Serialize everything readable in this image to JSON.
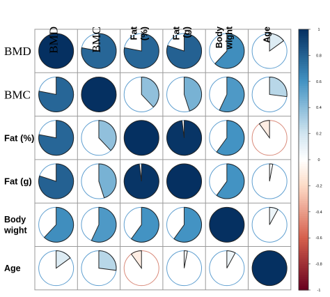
{
  "chart_data": {
    "type": "heatmap",
    "title": "",
    "style": "correlogram-pie",
    "variables": [
      "BMD",
      "BMC",
      "Fat (%)",
      "Fat (g)",
      "Body wight",
      "Age"
    ],
    "row_labels": [
      {
        "text": "BMD",
        "lines": [
          "BMD"
        ],
        "font": "serif"
      },
      {
        "text": "BMC",
        "lines": [
          "BMC"
        ],
        "font": "serif"
      },
      {
        "text": "Fat (%)",
        "lines": [
          "Fat (%)"
        ],
        "font": "sans"
      },
      {
        "text": "Fat (g)",
        "lines": [
          "Fat (g)"
        ],
        "font": "sans"
      },
      {
        "text": "Body wight",
        "lines": [
          "Body",
          "wight"
        ],
        "font": "sans-bold"
      },
      {
        "text": "Age",
        "lines": [
          "Age"
        ],
        "font": "sans-bold"
      }
    ],
    "column_labels": [
      {
        "text": "BMD",
        "lines": [
          "BMD"
        ],
        "font": "serif"
      },
      {
        "text": "BMC",
        "lines": [
          "BMC"
        ],
        "font": "serif"
      },
      {
        "text": "Fat (%)",
        "lines": [
          "Fat",
          "(%)"
        ],
        "font": "sans"
      },
      {
        "text": "Fat (g)",
        "lines": [
          "Fat",
          "(g)"
        ],
        "font": "sans"
      },
      {
        "text": "Body wight",
        "lines": [
          "Body",
          "wight"
        ],
        "font": "sans-bold"
      },
      {
        "text": "Age",
        "lines": [
          "Age"
        ],
        "font": "sans-bold"
      }
    ],
    "matrix": [
      [
        1.0,
        0.78,
        0.78,
        0.8,
        0.62,
        0.15
      ],
      [
        0.78,
        1.0,
        0.38,
        0.45,
        0.57,
        0.27
      ],
      [
        0.78,
        0.38,
        1.0,
        0.98,
        0.6,
        -0.1
      ],
      [
        0.8,
        0.45,
        0.98,
        1.0,
        0.6,
        0.03
      ],
      [
        0.62,
        0.57,
        0.6,
        0.6,
        1.0,
        0.08
      ],
      [
        0.15,
        0.27,
        -0.1,
        0.03,
        0.08,
        1.0
      ]
    ],
    "colorbar": {
      "range": [
        -1,
        1
      ],
      "ticks": [
        "1",
        "0.8",
        "0.6",
        "0.4",
        "0.2",
        "0",
        "-0.2",
        "-0.4",
        "-0.6",
        "-0.8",
        "-1"
      ],
      "colors": {
        "-1": "#67001f",
        "-0.6": "#d6604d",
        "-0.2": "#fddbc7",
        "0": "#ffffff",
        "0.2": "#d1e5f0",
        "0.6": "#4393c3",
        "1": "#053061"
      }
    }
  }
}
